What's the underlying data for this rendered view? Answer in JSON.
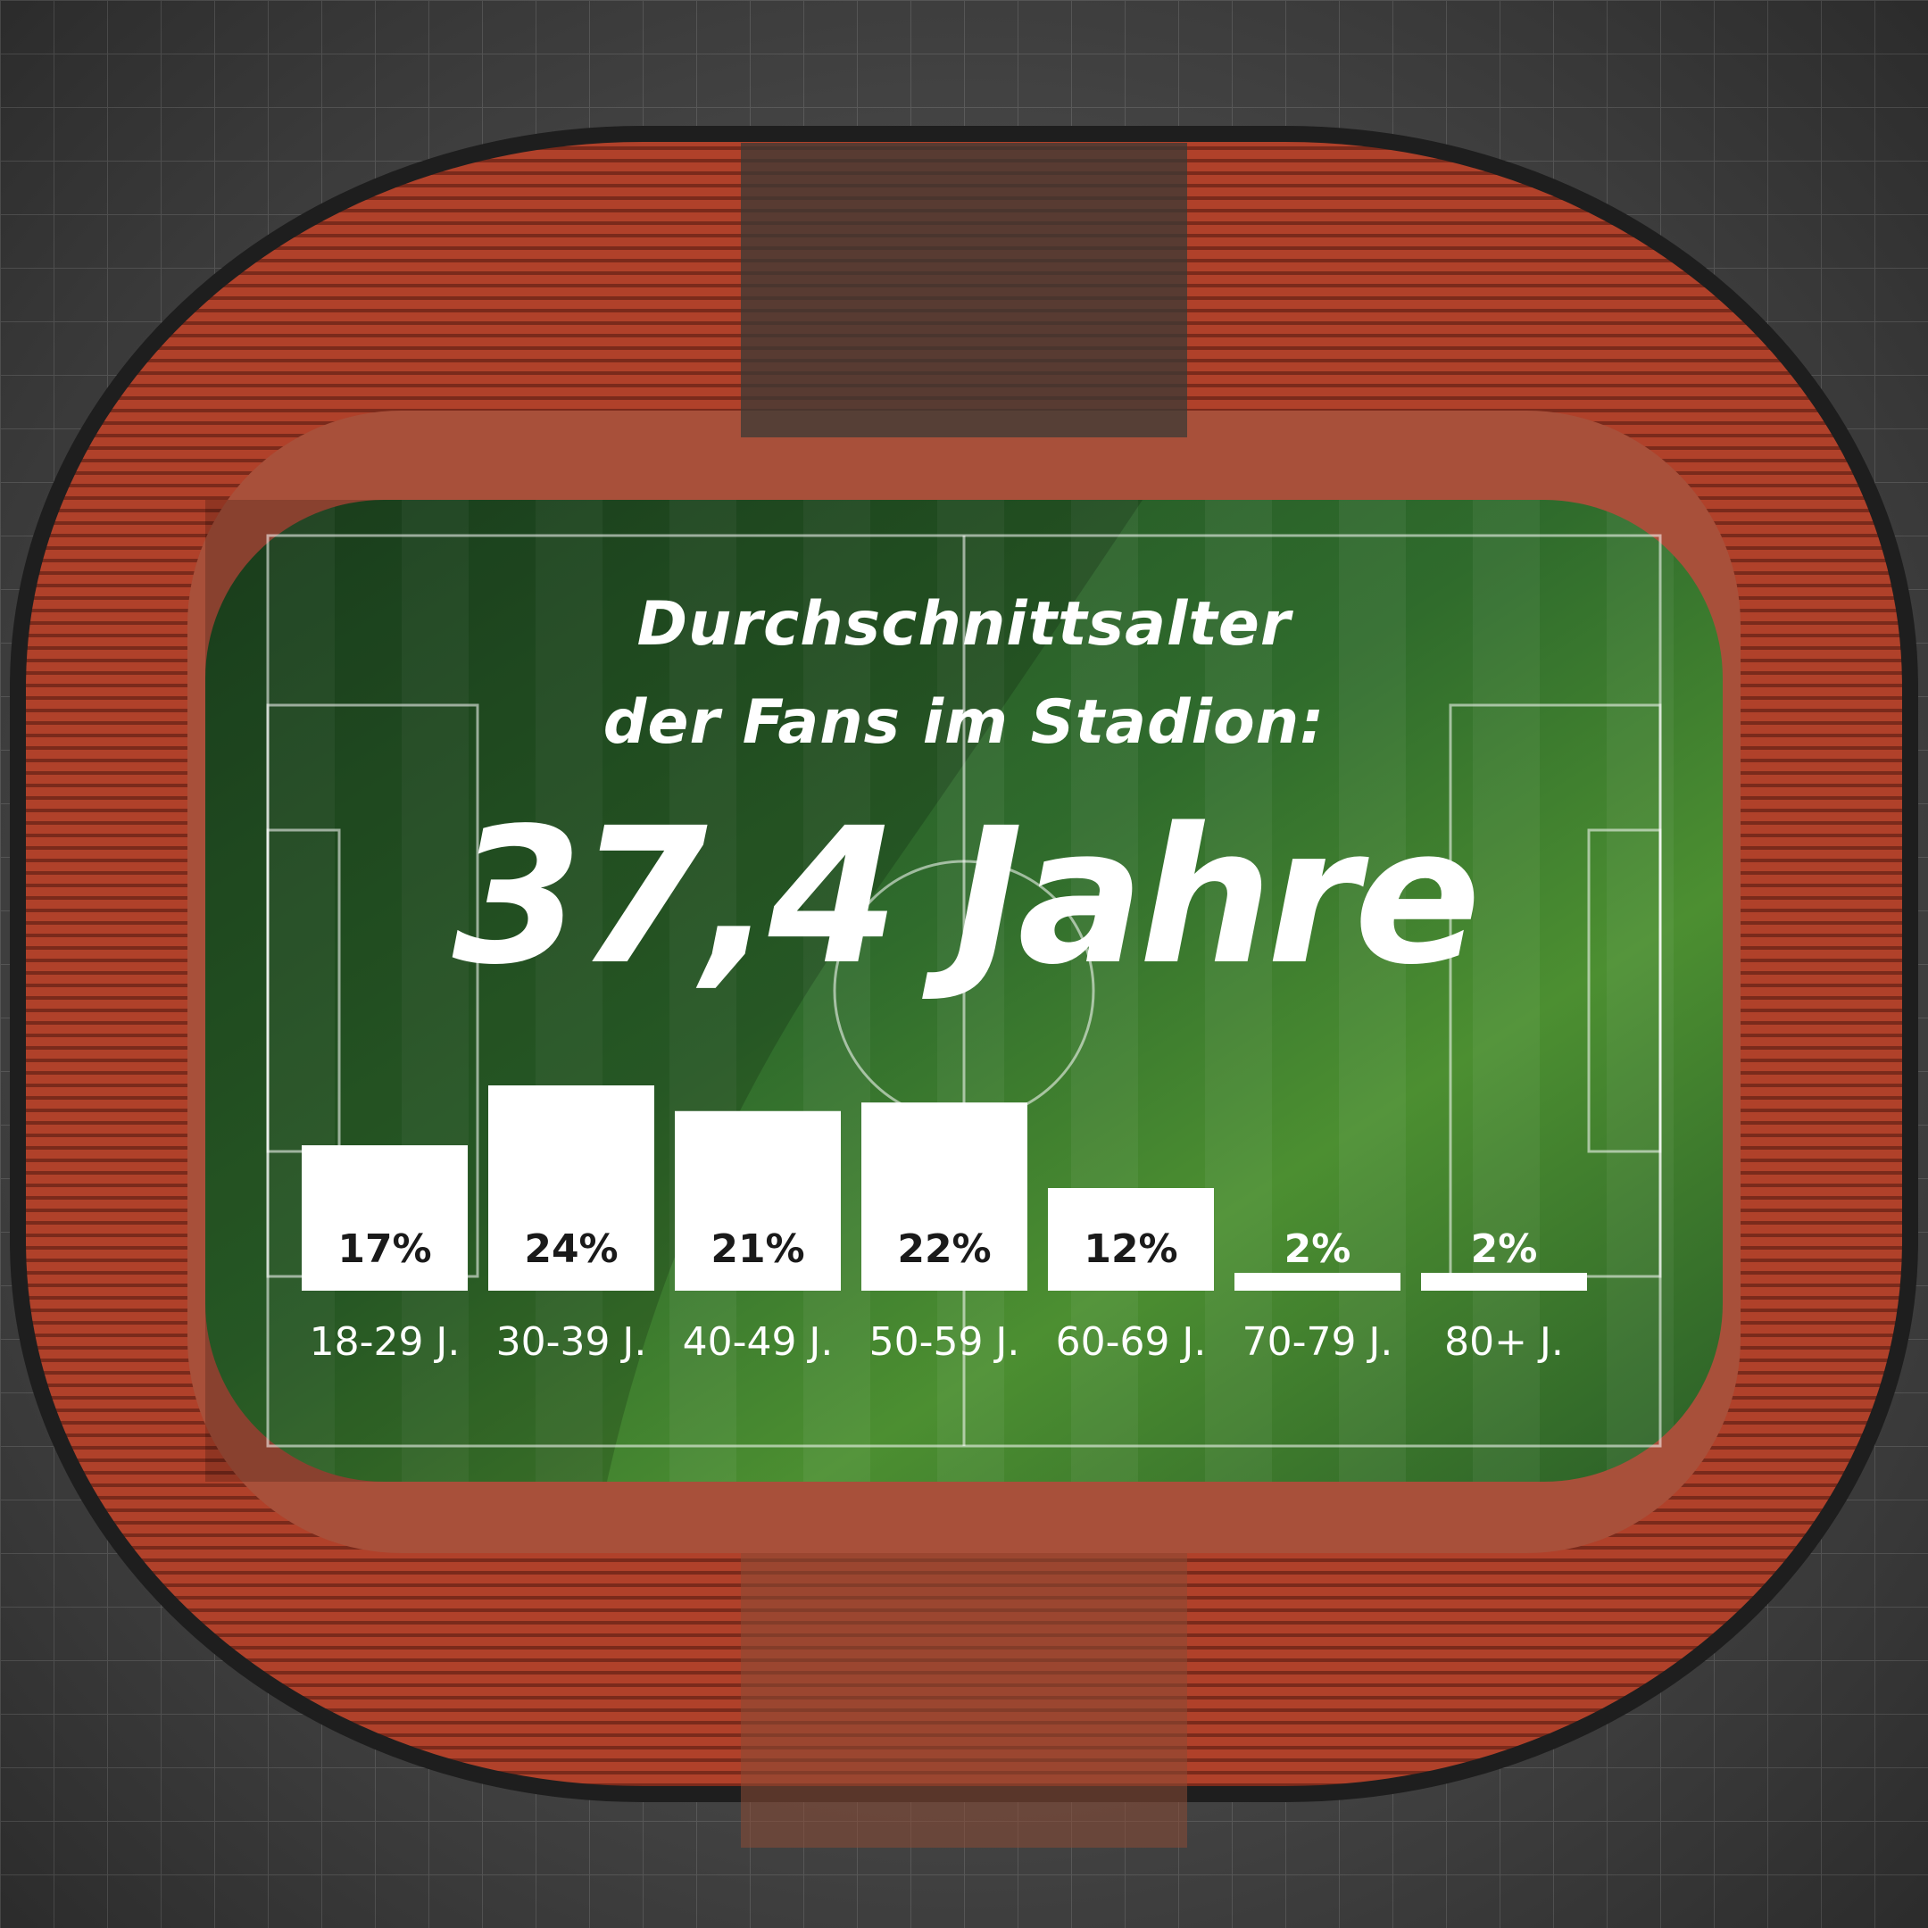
{
  "chart_data": {
    "type": "bar",
    "title": "Durchschnittsalter der Fans im Stadion:",
    "title_lines": [
      "Durchschnittsalter",
      "der Fans im Stadion:"
    ],
    "headline_value": "37,4 Jahre",
    "categories": [
      "18-29 J.",
      "30-39 J.",
      "40-49 J.",
      "50-59 J.",
      "60-69 J.",
      "70-79 J.",
      "80+ J."
    ],
    "values": [
      17,
      24,
      21,
      22,
      12,
      2,
      2
    ],
    "value_labels": [
      "17%",
      "24%",
      "21%",
      "22%",
      "12%",
      "2%",
      "2%"
    ],
    "unit": "%",
    "ylim": [
      0,
      24
    ],
    "grid": false,
    "legend": "none",
    "xlabel": "",
    "ylabel": ""
  },
  "colors": {
    "bar": "#ffffff",
    "bar_label": "#1a1a1a",
    "text": "#ffffff",
    "pitch": "#2f6b2c",
    "seats": "#b8452d",
    "roof": "#5b5b5b"
  },
  "background": {
    "description_icon": "stadium-aerial-image"
  }
}
